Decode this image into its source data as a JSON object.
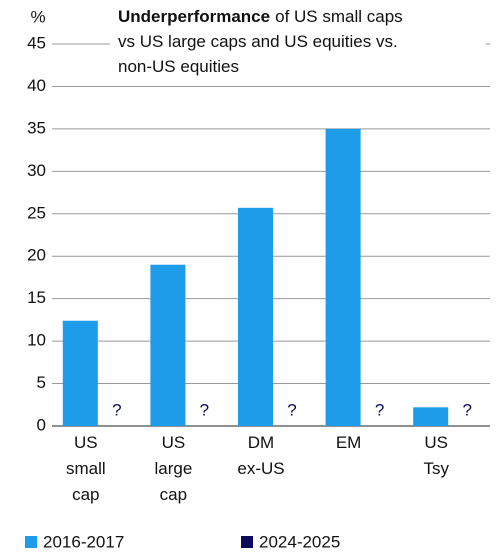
{
  "chart_data": {
    "type": "bar",
    "title_bold": "Underperformance",
    "title_lines": [
      "of US small caps",
      "vs US large caps and US equities vs.",
      "non-US equities"
    ],
    "y_unit": "%",
    "categories": [
      "US small cap",
      "US large cap",
      "DM ex-US",
      "EM",
      "US Tsy"
    ],
    "series": [
      {
        "name": "2016-2017",
        "color": "#1e9be9",
        "values": [
          12.4,
          19,
          25.7,
          35,
          2.2
        ]
      },
      {
        "name": "2024-2025",
        "color": "#0b0b5c",
        "values": [
          null,
          null,
          null,
          null,
          null
        ],
        "value_labels": [
          "?",
          "?",
          "?",
          "?",
          "?"
        ]
      }
    ],
    "ylim": [
      0,
      45
    ],
    "yticks": [
      0,
      5,
      10,
      15,
      20,
      25,
      30,
      35,
      40,
      45
    ],
    "grid": true
  }
}
